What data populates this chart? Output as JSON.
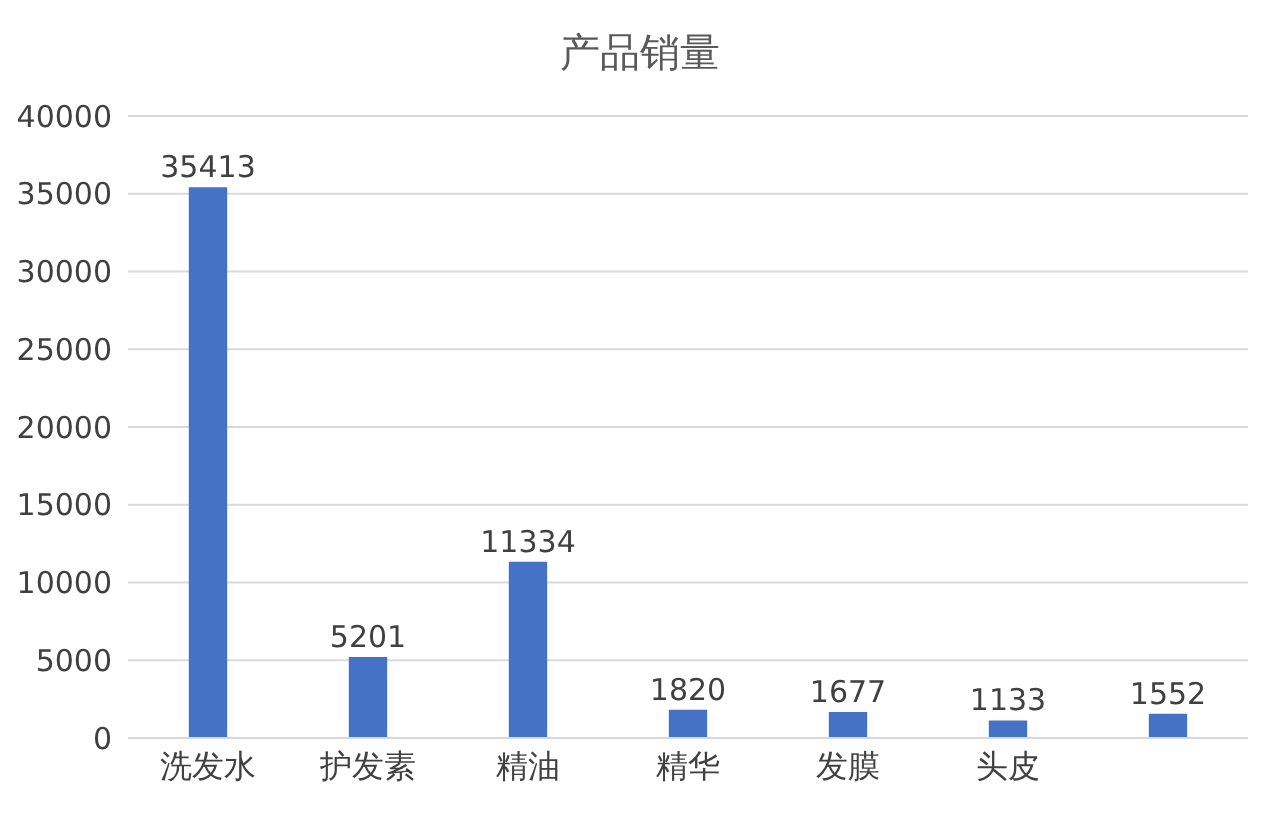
{
  "chart_data": {
    "type": "bar",
    "title": "产品销量",
    "categories": [
      "洗发水",
      "护发素",
      "精油",
      "精华",
      "发膜",
      "头皮",
      null
    ],
    "values": [
      35413,
      5201,
      11334,
      1820,
      1677,
      1133,
      1552
    ],
    "color": "#4472c4",
    "ylim": [
      0,
      40000
    ],
    "yticks": [
      0,
      5000,
      10000,
      15000,
      20000,
      25000,
      30000,
      35000,
      40000
    ],
    "grid": "y",
    "data_labels": true
  }
}
